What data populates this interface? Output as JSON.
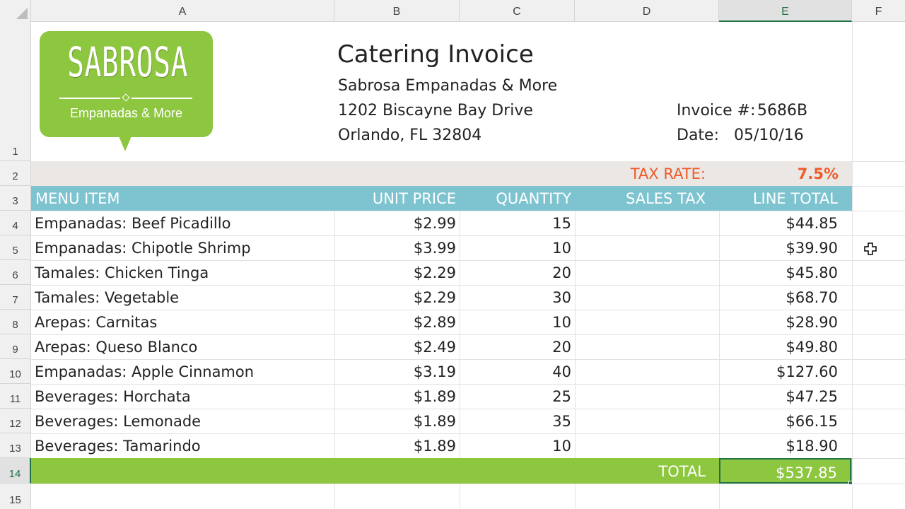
{
  "columns": [
    "A",
    "B",
    "C",
    "D",
    "E",
    "F"
  ],
  "selected_column": "E",
  "rows": [
    "1",
    "2",
    "3",
    "4",
    "5",
    "6",
    "7",
    "8",
    "9",
    "10",
    "11",
    "12",
    "13",
    "14",
    "15"
  ],
  "selected_row": "14",
  "logo": {
    "title": "SABROSA",
    "subtitle": "Empanadas & More",
    "color": "#8dc63f"
  },
  "invoice": {
    "title": "Catering Invoice",
    "company": "Sabrosa Empanadas & More",
    "street": "1202 Biscayne Bay Drive",
    "city": "Orlando, FL 32804",
    "number_label": "Invoice #:",
    "number": "5686B",
    "date_label": "Date:",
    "date": "05/10/16"
  },
  "tax": {
    "label": "TAX RATE:",
    "value": "7.5%",
    "color": "#f05a28"
  },
  "table": {
    "header_color": "#7ec3d0",
    "headers": {
      "item": "MENU ITEM",
      "unit_price": "UNIT PRICE",
      "quantity": "QUANTITY",
      "sales_tax": "SALES TAX",
      "line_total": "LINE TOTAL"
    },
    "items": [
      {
        "item": "Empanadas: Beef Picadillo",
        "unit_price": "$2.99",
        "quantity": "15",
        "sales_tax": "",
        "line_total": "$44.85"
      },
      {
        "item": "Empanadas: Chipotle Shrimp",
        "unit_price": "$3.99",
        "quantity": "10",
        "sales_tax": "",
        "line_total": "$39.90"
      },
      {
        "item": "Tamales: Chicken Tinga",
        "unit_price": "$2.29",
        "quantity": "20",
        "sales_tax": "",
        "line_total": "$45.80"
      },
      {
        "item": "Tamales: Vegetable",
        "unit_price": "$2.29",
        "quantity": "30",
        "sales_tax": "",
        "line_total": "$68.70"
      },
      {
        "item": "Arepas: Carnitas",
        "unit_price": "$2.89",
        "quantity": "10",
        "sales_tax": "",
        "line_total": "$28.90"
      },
      {
        "item": "Arepas: Queso Blanco",
        "unit_price": "$2.49",
        "quantity": "20",
        "sales_tax": "",
        "line_total": "$49.80"
      },
      {
        "item": "Empanadas: Apple Cinnamon",
        "unit_price": "$3.19",
        "quantity": "40",
        "sales_tax": "",
        "line_total": "$127.60"
      },
      {
        "item": "Beverages: Horchata",
        "unit_price": "$1.89",
        "quantity": "25",
        "sales_tax": "",
        "line_total": "$47.25"
      },
      {
        "item": "Beverages: Lemonade",
        "unit_price": "$1.89",
        "quantity": "35",
        "sales_tax": "",
        "line_total": "$66.15"
      },
      {
        "item": "Beverages: Tamarindo",
        "unit_price": "$1.89",
        "quantity": "10",
        "sales_tax": "",
        "line_total": "$18.90"
      }
    ],
    "total_label": "TOTAL",
    "total_value": "$537.85",
    "total_color": "#8dc63f"
  },
  "cursor_icon": "cell-select-cross-icon"
}
